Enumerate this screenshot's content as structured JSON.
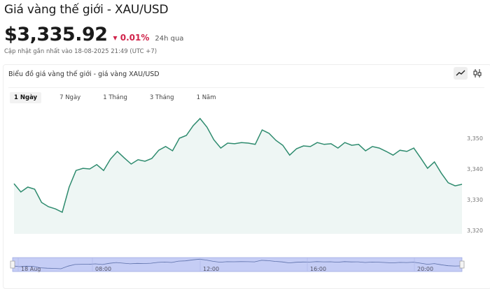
{
  "header": {
    "title": "Giá vàng thế giới - XAU/USD",
    "price": "$3,335.92",
    "change": "0.01%",
    "change_period": "24h qua",
    "change_direction": "down",
    "updated": "Cập nhật gần nhất vào 18-08-2025 21:49 (UTC +7)"
  },
  "chart_card": {
    "title": "Biểu đồ giá vàng thế giới - giá vàng XAU/USD",
    "tools": [
      {
        "icon": "line-chart-icon",
        "active": true
      },
      {
        "icon": "candlestick-icon",
        "active": false
      }
    ],
    "tabs": [
      {
        "label": "1 Ngày",
        "active": true
      },
      {
        "label": "7 Ngày"
      },
      {
        "label": "1 Tháng"
      },
      {
        "label": "3 Tháng"
      },
      {
        "label": "1 Năm"
      }
    ]
  },
  "colors": {
    "line": "#2e8b6e",
    "area": "#eef6f4",
    "negative": "#d0234a",
    "navigator": "#c5cdf5"
  },
  "chart_data": {
    "type": "area",
    "ylim": [
      3318,
      3360
    ],
    "yticks": [
      "3,350",
      "3,340",
      "3,330",
      "3,320"
    ],
    "ytick_values": [
      3350,
      3340,
      3330,
      3320
    ],
    "values": [
      3335.2,
      3332.5,
      3334.1,
      3333.4,
      3329.1,
      3327.7,
      3327.0,
      3325.9,
      3334.1,
      3339.5,
      3340.2,
      3340.0,
      3341.4,
      3339.5,
      3343.2,
      3345.7,
      3343.6,
      3341.6,
      3343.0,
      3342.5,
      3343.4,
      3346.1,
      3347.3,
      3345.9,
      3350.0,
      3350.9,
      3354.1,
      3356.4,
      3353.6,
      3349.5,
      3346.8,
      3348.4,
      3348.2,
      3348.6,
      3348.4,
      3348.0,
      3352.7,
      3351.6,
      3349.3,
      3347.7,
      3344.5,
      3346.6,
      3347.5,
      3347.3,
      3348.6,
      3348.0,
      3348.2,
      3346.8,
      3348.6,
      3347.7,
      3348.0,
      3345.9,
      3347.3,
      3346.8,
      3345.7,
      3344.5,
      3346.1,
      3345.7,
      3346.8,
      3343.6,
      3340.2,
      3342.3,
      3338.6,
      3335.5,
      3334.5,
      3335.0
    ],
    "navigator_labels": [
      "18 Aug",
      "08:00",
      "12:00",
      "16:00",
      "20:00"
    ]
  }
}
